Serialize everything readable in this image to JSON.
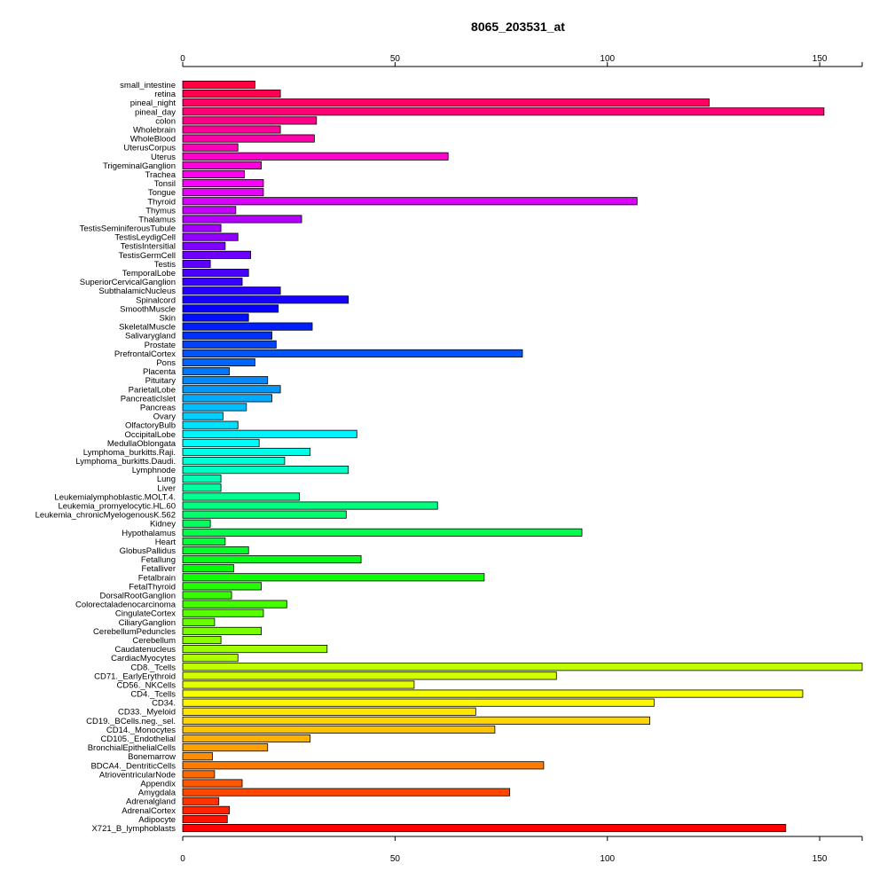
{
  "chart_data": {
    "type": "bar",
    "orientation": "horizontal",
    "title": "8065_203531_at",
    "xlabel": "",
    "ylabel": "",
    "xlim": [
      0,
      160
    ],
    "xticks": [
      0,
      50,
      100,
      150
    ],
    "xtick_labels": [
      "0",
      "50",
      "100",
      "150"
    ],
    "axes": "top and bottom",
    "grid": false,
    "legend": "none",
    "colors": "rainbow gradient from red (bottom) through orange, yellow, green, cyan, blue, violet, magenta to red (top)",
    "categories": [
      "small_intestine",
      "retina",
      "pineal_night",
      "pineal_day",
      "colon",
      "Wholebrain",
      "WholeBlood",
      "UterusCorpus",
      "Uterus",
      "TrigeminalGanglion",
      "Trachea",
      "Tonsil",
      "Tongue",
      "Thyroid",
      "Thymus",
      "Thalamus",
      "TestisSeminiferousTubule",
      "TestisLeydigCell",
      "TestisIntersitial",
      "TestisGermCell",
      "Testis",
      "TemporalLobe",
      "SuperiorCervicalGanglion",
      "SubthalamicNucleus",
      "Spinalcord",
      "SmoothMuscle",
      "Skin",
      "SkeletalMuscle",
      "Salivarygland",
      "Prostate",
      "PrefrontalCortex",
      "Pons",
      "Placenta",
      "Pituitary",
      "ParietalLobe",
      "PancreaticIslet",
      "Pancreas",
      "Ovary",
      "OlfactoryBulb",
      "OccipitalLobe",
      "MedullaOblongata",
      "Lymphoma_burkitts.Raji.",
      "Lymphoma_burkitts.Daudi.",
      "Lymphnode",
      "Lung",
      "Liver",
      "Leukemialymphoblastic.MOLT.4.",
      "Leukemia_promyelocytic.HL.60",
      "Leukemia_chronicMyelogenousK.562",
      "Kidney",
      "Hypothalamus",
      "Heart",
      "GlobusPallidus",
      "Fetallung",
      "Fetalliver",
      "Fetalbrain",
      "FetalThyroid",
      "DorsalRootGanglion",
      "Colorectaladenocarcinoma",
      "CingulateCortex",
      "CiliaryGanglion",
      "CerebellumPeduncles",
      "Cerebellum",
      "Caudatenucleus",
      "CardiacMyocytes",
      "CD8._Tcells",
      "CD71._EarlyErythroid",
      "CD56._NKCells",
      "CD4._Tcells",
      "CD34.",
      "CD33._Myeloid",
      "CD19._BCells.neg._sel.",
      "CD14._Monocytes",
      "CD105._Endothelial",
      "BronchialEpithelialCells",
      "Bonemarrow",
      "BDCA4._DentriticCells",
      "AtrioventricularNode",
      "Appendix",
      "Amygdala",
      "Adrenalgland",
      "AdrenalCortex",
      "Adipocyte",
      "X721_B_lymphoblasts"
    ],
    "values": [
      17,
      23,
      124,
      151,
      31.5,
      23,
      31,
      13,
      62.5,
      18.5,
      14.5,
      19,
      19,
      107,
      12.5,
      28,
      9,
      13,
      10,
      16,
      6.5,
      15.5,
      14,
      23,
      39,
      22.5,
      15.5,
      30.5,
      21,
      22,
      80,
      17,
      11,
      20,
      23,
      21,
      15,
      9.5,
      13,
      41,
      18,
      30,
      24,
      39,
      9,
      9,
      27.5,
      60,
      38.5,
      6.5,
      94,
      10,
      15.5,
      42,
      12,
      71,
      18.5,
      11.5,
      24.5,
      19,
      7.5,
      18.5,
      9,
      34,
      13,
      160,
      88,
      54.5,
      146,
      111,
      69,
      110,
      73.5,
      30,
      20,
      7,
      85,
      7.5,
      14,
      77,
      8.5,
      11,
      10.5,
      142
    ]
  }
}
